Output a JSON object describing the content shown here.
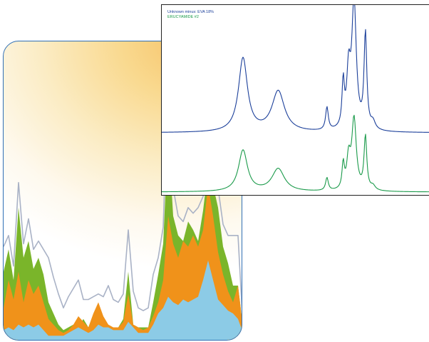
{
  "colors": {
    "panel_border": "#2f6fb5",
    "blue_series": "#1b3f9a",
    "green_series": "#1a9a4a",
    "fill_light_blue": "#8ccbe6",
    "fill_orange": "#f0921a",
    "fill_green": "#7ab52a",
    "outline_gray": "#a9b2c6"
  },
  "legend": {
    "series_1": "Unknown minus: EVA 18%",
    "series_2": "ERUCYAMIDE #2"
  },
  "chart_data": [
    {
      "type": "area",
      "title": "",
      "xlabel": "",
      "ylabel": "",
      "grid": false,
      "series": [
        {
          "color": "outline_gray",
          "style": "line",
          "values": [
            0.34,
            0.38,
            0.27,
            0.57,
            0.35,
            0.44,
            0.33,
            0.36,
            0.33,
            0.3,
            0.23,
            0.17,
            0.12,
            0.16,
            0.19,
            0.22,
            0.15,
            0.15,
            0.16,
            0.17,
            0.16,
            0.2,
            0.15,
            0.14,
            0.17,
            0.4,
            0.18,
            0.12,
            0.11,
            0.12,
            0.24,
            0.3,
            0.41,
            0.93,
            0.55,
            0.45,
            0.43,
            0.48,
            0.46,
            0.48,
            0.52,
            0.68,
            0.62,
            0.55,
            0.42,
            0.38,
            0.38,
            0.38,
            0.05
          ]
        },
        {
          "color": "fill_green",
          "style": "area",
          "values": [
            0.25,
            0.33,
            0.22,
            0.48,
            0.3,
            0.36,
            0.26,
            0.3,
            0.24,
            0.14,
            0.1,
            0.06,
            0.04,
            0.05,
            0.06,
            0.05,
            0.08,
            0.05,
            0.08,
            0.1,
            0.06,
            0.05,
            0.05,
            0.05,
            0.08,
            0.25,
            0.06,
            0.05,
            0.05,
            0.05,
            0.14,
            0.24,
            0.35,
            0.75,
            0.45,
            0.38,
            0.36,
            0.43,
            0.4,
            0.36,
            0.47,
            0.62,
            0.56,
            0.48,
            0.34,
            0.28,
            0.2,
            0.2,
            0.05
          ]
        },
        {
          "color": "fill_orange",
          "style": "area",
          "values": [
            0.12,
            0.22,
            0.15,
            0.25,
            0.14,
            0.22,
            0.17,
            0.2,
            0.14,
            0.08,
            0.06,
            0.04,
            0.03,
            0.04,
            0.06,
            0.09,
            0.07,
            0.05,
            0.1,
            0.14,
            0.09,
            0.06,
            0.05,
            0.05,
            0.07,
            0.17,
            0.06,
            0.05,
            0.04,
            0.05,
            0.09,
            0.14,
            0.22,
            0.45,
            0.35,
            0.3,
            0.36,
            0.34,
            0.38,
            0.34,
            0.4,
            0.56,
            0.45,
            0.32,
            0.24,
            0.18,
            0.14,
            0.2,
            0.05
          ]
        },
        {
          "color": "fill_light_blue",
          "style": "area",
          "values": [
            0.04,
            0.05,
            0.04,
            0.06,
            0.05,
            0.06,
            0.05,
            0.06,
            0.04,
            0.02,
            0.02,
            0.02,
            0.02,
            0.03,
            0.04,
            0.05,
            0.04,
            0.03,
            0.04,
            0.06,
            0.05,
            0.05,
            0.04,
            0.04,
            0.04,
            0.07,
            0.05,
            0.03,
            0.03,
            0.03,
            0.06,
            0.1,
            0.12,
            0.16,
            0.14,
            0.13,
            0.15,
            0.14,
            0.15,
            0.16,
            0.22,
            0.29,
            0.22,
            0.15,
            0.13,
            0.11,
            0.1,
            0.08,
            0.03
          ]
        }
      ]
    },
    {
      "type": "line",
      "title": "",
      "xlabel": "",
      "ylabel": "",
      "grid": false,
      "legend_position": "top-left",
      "baseline": 0,
      "peaks": [
        {
          "x": 0.3,
          "height": 0.58,
          "width": 0.02
        },
        {
          "x": 0.43,
          "height": 0.32,
          "width": 0.028
        },
        {
          "x": 0.61,
          "height": 0.18,
          "width": 0.006
        },
        {
          "x": 0.67,
          "height": 0.35,
          "width": 0.005
        },
        {
          "x": 0.69,
          "height": 0.42,
          "width": 0.008
        },
        {
          "x": 0.71,
          "height": 1.0,
          "width": 0.01
        },
        {
          "x": 0.752,
          "height": 0.75,
          "width": 0.006
        },
        {
          "x": 0.78,
          "height": 0.06,
          "width": 0.01
        }
      ],
      "series": [
        {
          "name_key": "series_1",
          "color": "blue_series"
        },
        {
          "name_key": "series_2",
          "color": "green_series",
          "scale": 0.56
        }
      ]
    }
  ]
}
